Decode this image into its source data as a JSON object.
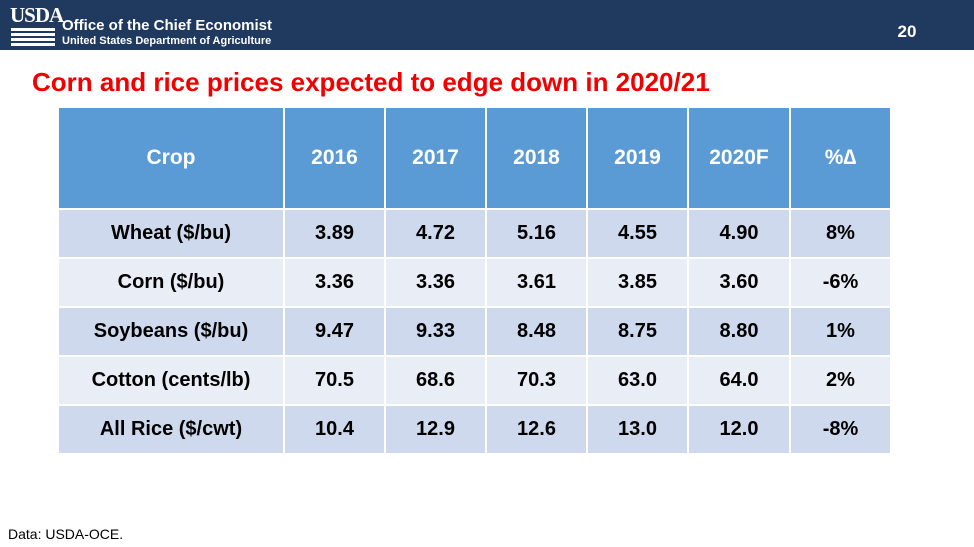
{
  "header": {
    "logo_text": "USDA",
    "office": "Office of the Chief Economist",
    "department": "United States Department of Agriculture",
    "page_number": "20",
    "background_color": "#20395e"
  },
  "title": "Corn and rice prices expected to edge down in 2020/21",
  "title_color": "#f20000",
  "table": {
    "header_color": "#5b9bd5",
    "columns": [
      "Crop",
      "2016",
      "2017",
      "2018",
      "2019",
      "2020F",
      "%∆"
    ],
    "rows": [
      [
        "Wheat ($/bu)",
        "3.89",
        "4.72",
        "5.16",
        "4.55",
        "4.90",
        "8%"
      ],
      [
        "Corn ($/bu)",
        "3.36",
        "3.36",
        "3.61",
        "3.85",
        "3.60",
        "-6%"
      ],
      [
        "Soybeans ($/bu)",
        "9.47",
        "9.33",
        "8.48",
        "8.75",
        "8.80",
        "1%"
      ],
      [
        "Cotton (cents/lb)",
        "70.5",
        "68.6",
        "70.3",
        "63.0",
        "64.0",
        "2%"
      ],
      [
        "All Rice ($/cwt)",
        "10.4",
        "12.9",
        "12.6",
        "13.0",
        "12.0",
        "-8%"
      ]
    ]
  },
  "source": "Data: USDA-OCE."
}
